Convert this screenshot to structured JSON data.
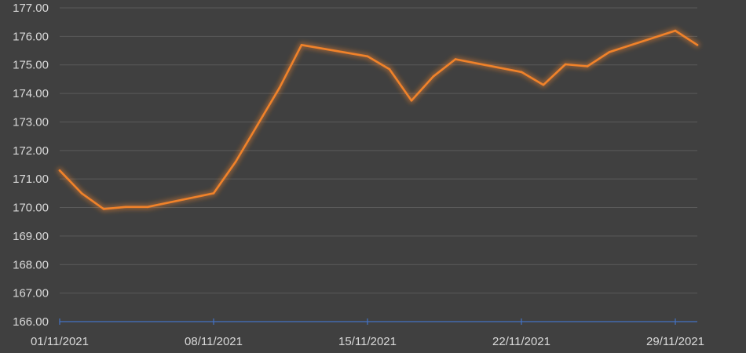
{
  "chart_data": {
    "type": "line",
    "title": "",
    "xlabel": "",
    "ylabel": "",
    "ylim": [
      166,
      177
    ],
    "y_ticks": [
      "166.00",
      "167.00",
      "168.00",
      "169.00",
      "170.00",
      "171.00",
      "172.00",
      "173.00",
      "174.00",
      "175.00",
      "176.00",
      "177.00"
    ],
    "x_range": [
      "2021-11-01",
      "2021-11-30"
    ],
    "x_ticks": [
      {
        "date": "2021-11-01",
        "label": "01/11/2021"
      },
      {
        "date": "2021-11-08",
        "label": "08/11/2021"
      },
      {
        "date": "2021-11-15",
        "label": "15/11/2021"
      },
      {
        "date": "2021-11-22",
        "label": "22/11/2021"
      },
      {
        "date": "2021-11-29",
        "label": "29/11/2021"
      }
    ],
    "grid": true,
    "legend": "none",
    "series": [
      {
        "color": "#f0822a",
        "points": [
          {
            "x": "2021-11-01",
            "y": 171.3
          },
          {
            "x": "2021-11-02",
            "y": 170.5
          },
          {
            "x": "2021-11-03",
            "y": 169.95
          },
          {
            "x": "2021-11-04",
            "y": 170.02
          },
          {
            "x": "2021-11-05",
            "y": 170.02
          },
          {
            "x": "2021-11-08",
            "y": 170.5
          },
          {
            "x": "2021-11-09",
            "y": 171.6
          },
          {
            "x": "2021-11-10",
            "y": 172.9
          },
          {
            "x": "2021-11-11",
            "y": 174.2
          },
          {
            "x": "2021-11-12",
            "y": 175.7
          },
          {
            "x": "2021-11-15",
            "y": 175.3
          },
          {
            "x": "2021-11-16",
            "y": 174.85
          },
          {
            "x": "2021-11-17",
            "y": 173.75
          },
          {
            "x": "2021-11-18",
            "y": 174.6
          },
          {
            "x": "2021-11-19",
            "y": 175.2
          },
          {
            "x": "2021-11-22",
            "y": 174.75
          },
          {
            "x": "2021-11-23",
            "y": 174.3
          },
          {
            "x": "2021-11-24",
            "y": 175.02
          },
          {
            "x": "2021-11-25",
            "y": 174.95
          },
          {
            "x": "2021-11-26",
            "y": 175.45
          },
          {
            "x": "2021-11-29",
            "y": 176.2
          },
          {
            "x": "2021-11-30",
            "y": 175.7
          }
        ]
      }
    ]
  }
}
